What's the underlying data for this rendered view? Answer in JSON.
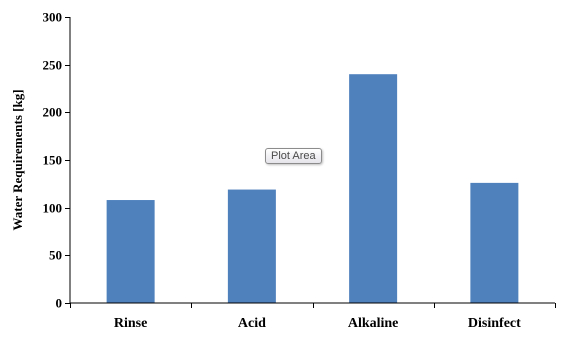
{
  "chart_data": {
    "type": "bar",
    "categories": [
      "Rinse",
      "Acid",
      "Alkaline",
      "Disinfect"
    ],
    "values": [
      108,
      119,
      240,
      126
    ],
    "ylabel": "Water Requirements  [kg]",
    "xlabel": "",
    "ylim": [
      0,
      300
    ],
    "yticks": [
      0,
      50,
      100,
      150,
      200,
      250,
      300
    ],
    "grid": false,
    "legend": "none",
    "bar_color": "#4F81BD"
  },
  "tooltip": {
    "text": "Plot Area"
  }
}
